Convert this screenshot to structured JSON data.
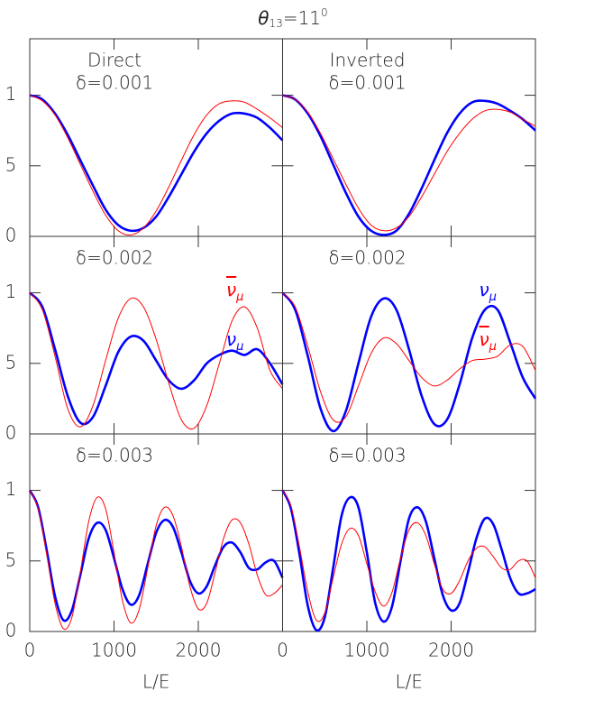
{
  "title": {
    "symbol": "θ",
    "subscript": "13",
    "text": "=11",
    "superscript": "0"
  },
  "chart_data": [
    {
      "type": "line",
      "annotations": [
        "Direct",
        "δ=0.001"
      ],
      "xlim": [
        0,
        3000
      ],
      "ylim": [
        0,
        1.4
      ],
      "xticks": [
        0,
        1000,
        2000
      ],
      "yticks": [
        0,
        {
          "value": 0.5,
          "label": "5"
        },
        1
      ],
      "x": [
        0,
        150,
        300,
        450,
        600,
        750,
        900,
        1050,
        1200,
        1350,
        1500,
        1650,
        1800,
        1950,
        2100,
        2250,
        2400,
        2550,
        2700,
        2850,
        3000
      ],
      "series": [
        {
          "color": "#ff0000",
          "values": [
            1.0,
            0.96,
            0.86,
            0.7,
            0.51,
            0.32,
            0.15,
            0.04,
            0.01,
            0.06,
            0.18,
            0.35,
            0.54,
            0.72,
            0.86,
            0.94,
            0.96,
            0.95,
            0.9,
            0.84,
            0.77
          ]
        },
        {
          "color": "#0000ff",
          "values": [
            1.0,
            0.97,
            0.87,
            0.72,
            0.54,
            0.36,
            0.19,
            0.08,
            0.04,
            0.06,
            0.14,
            0.28,
            0.44,
            0.6,
            0.73,
            0.82,
            0.87,
            0.87,
            0.84,
            0.77,
            0.68
          ]
        }
      ]
    },
    {
      "type": "line",
      "annotations": [
        "Inverted",
        "δ=0.001"
      ],
      "xlim": [
        0,
        3000
      ],
      "ylim": [
        0,
        1.4
      ],
      "xticks": [
        0,
        1000,
        2000
      ],
      "yticks": [
        0,
        0.5,
        1
      ],
      "x": [
        0,
        150,
        300,
        450,
        600,
        750,
        900,
        1050,
        1200,
        1350,
        1500,
        1650,
        1800,
        1950,
        2100,
        2250,
        2400,
        2550,
        2700,
        2850,
        3000
      ],
      "series": [
        {
          "color": "#ff0000",
          "values": [
            1.0,
            0.97,
            0.88,
            0.73,
            0.55,
            0.37,
            0.2,
            0.08,
            0.04,
            0.06,
            0.14,
            0.28,
            0.44,
            0.6,
            0.73,
            0.83,
            0.89,
            0.9,
            0.88,
            0.83,
            0.78
          ]
        },
        {
          "color": "#0000ff",
          "values": [
            1.0,
            0.97,
            0.87,
            0.71,
            0.51,
            0.31,
            0.14,
            0.04,
            0.01,
            0.04,
            0.16,
            0.34,
            0.54,
            0.73,
            0.87,
            0.95,
            0.96,
            0.94,
            0.89,
            0.83,
            0.75
          ]
        }
      ]
    },
    {
      "type": "line",
      "annotations": [
        "δ=0.002"
      ],
      "xlim": [
        0,
        3000
      ],
      "ylim": [
        0,
        1.4
      ],
      "xticks": [
        0,
        1000,
        2000
      ],
      "yticks": [
        0,
        {
          "value": 0.5,
          "label": "5"
        },
        1
      ],
      "x": [
        0,
        150,
        300,
        450,
        600,
        750,
        900,
        1050,
        1200,
        1350,
        1500,
        1650,
        1800,
        1950,
        2100,
        2250,
        2400,
        2550,
        2700,
        2850,
        3000
      ],
      "series": [
        {
          "name": "ν",
          "subscript": "μ",
          "bar": true,
          "color": "#ff0000",
          "values": [
            1.0,
            0.88,
            0.55,
            0.18,
            0.05,
            0.2,
            0.52,
            0.82,
            0.96,
            0.9,
            0.67,
            0.36,
            0.1,
            0.04,
            0.2,
            0.5,
            0.8,
            0.9,
            0.75,
            0.45,
            0.32
          ]
        },
        {
          "name": "ν",
          "subscript": "μ",
          "color": "#0000ff",
          "values": [
            1.0,
            0.9,
            0.6,
            0.27,
            0.08,
            0.12,
            0.34,
            0.58,
            0.69,
            0.66,
            0.52,
            0.38,
            0.32,
            0.38,
            0.5,
            0.56,
            0.59,
            0.56,
            0.6,
            0.5,
            0.35
          ]
        }
      ]
    },
    {
      "type": "line",
      "annotations": [
        "δ=0.002"
      ],
      "xlim": [
        0,
        3000
      ],
      "ylim": [
        0,
        1.4
      ],
      "xticks": [
        0,
        1000,
        2000
      ],
      "yticks": [
        0,
        0.5,
        1
      ],
      "x": [
        0,
        150,
        300,
        450,
        600,
        750,
        900,
        1050,
        1200,
        1350,
        1500,
        1650,
        1800,
        1950,
        2100,
        2250,
        2400,
        2550,
        2700,
        2850,
        3000
      ],
      "series": [
        {
          "name": "ν",
          "subscript": "μ",
          "color": "#0000ff",
          "values": [
            1.0,
            0.88,
            0.55,
            0.18,
            0.02,
            0.16,
            0.5,
            0.83,
            0.96,
            0.88,
            0.6,
            0.27,
            0.07,
            0.1,
            0.35,
            0.68,
            0.88,
            0.88,
            0.65,
            0.4,
            0.25
          ]
        },
        {
          "name": "ν",
          "subscript": "μ",
          "bar": true,
          "color": "#ff0000",
          "values": [
            1.0,
            0.9,
            0.62,
            0.3,
            0.1,
            0.12,
            0.34,
            0.57,
            0.68,
            0.64,
            0.52,
            0.4,
            0.34,
            0.38,
            0.46,
            0.52,
            0.53,
            0.55,
            0.63,
            0.62,
            0.45
          ]
        }
      ]
    },
    {
      "type": "line",
      "annotations": [
        "δ=0.003"
      ],
      "xlabel": "L/E",
      "xlim": [
        0,
        3000
      ],
      "ylim": [
        0,
        1.4
      ],
      "xticks": [
        0,
        1000,
        2000
      ],
      "yticks": [
        0,
        {
          "value": 0.5,
          "label": "5"
        },
        1
      ],
      "x": [
        0,
        100,
        200,
        300,
        400,
        500,
        600,
        700,
        800,
        900,
        1000,
        1100,
        1200,
        1300,
        1400,
        1500,
        1600,
        1700,
        1800,
        1900,
        2000,
        2100,
        2200,
        2300,
        2400,
        2500,
        2600,
        2700,
        2800,
        2900,
        3000
      ],
      "series": [
        {
          "color": "#ff0000",
          "values": [
            1.0,
            0.87,
            0.55,
            0.2,
            0.02,
            0.1,
            0.42,
            0.78,
            0.95,
            0.87,
            0.56,
            0.22,
            0.06,
            0.16,
            0.45,
            0.75,
            0.88,
            0.82,
            0.6,
            0.32,
            0.16,
            0.2,
            0.42,
            0.66,
            0.79,
            0.77,
            0.62,
            0.4,
            0.26,
            0.27,
            0.33
          ]
        },
        {
          "color": "#0000ff",
          "values": [
            1.0,
            0.88,
            0.58,
            0.25,
            0.08,
            0.15,
            0.4,
            0.66,
            0.77,
            0.72,
            0.52,
            0.3,
            0.19,
            0.26,
            0.48,
            0.7,
            0.79,
            0.74,
            0.56,
            0.36,
            0.27,
            0.32,
            0.47,
            0.6,
            0.63,
            0.56,
            0.45,
            0.44,
            0.49,
            0.5,
            0.38
          ]
        }
      ]
    },
    {
      "type": "line",
      "annotations": [
        "δ=0.003"
      ],
      "xlabel": "L/E",
      "xlim": [
        0,
        3000
      ],
      "ylim": [
        0,
        1.4
      ],
      "xticks": [
        0,
        1000,
        2000
      ],
      "yticks": [
        0,
        0.5,
        1
      ],
      "x": [
        0,
        100,
        200,
        300,
        400,
        500,
        600,
        700,
        800,
        900,
        1000,
        1100,
        1200,
        1300,
        1400,
        1500,
        1600,
        1700,
        1800,
        1900,
        2000,
        2100,
        2200,
        2300,
        2400,
        2500,
        2600,
        2700,
        2800,
        2900,
        3000
      ],
      "series": [
        {
          "color": "#ff0000",
          "values": [
            1.0,
            0.89,
            0.6,
            0.28,
            0.08,
            0.13,
            0.38,
            0.62,
            0.73,
            0.68,
            0.48,
            0.28,
            0.18,
            0.28,
            0.52,
            0.72,
            0.77,
            0.68,
            0.48,
            0.3,
            0.27,
            0.36,
            0.5,
            0.59,
            0.6,
            0.53,
            0.45,
            0.44,
            0.5,
            0.5,
            0.38
          ]
        },
        {
          "color": "#0000ff",
          "values": [
            1.0,
            0.87,
            0.55,
            0.18,
            0.01,
            0.1,
            0.45,
            0.82,
            0.95,
            0.88,
            0.56,
            0.2,
            0.07,
            0.18,
            0.5,
            0.8,
            0.88,
            0.78,
            0.52,
            0.26,
            0.15,
            0.2,
            0.42,
            0.66,
            0.8,
            0.76,
            0.58,
            0.38,
            0.27,
            0.27,
            0.3
          ]
        }
      ]
    }
  ]
}
